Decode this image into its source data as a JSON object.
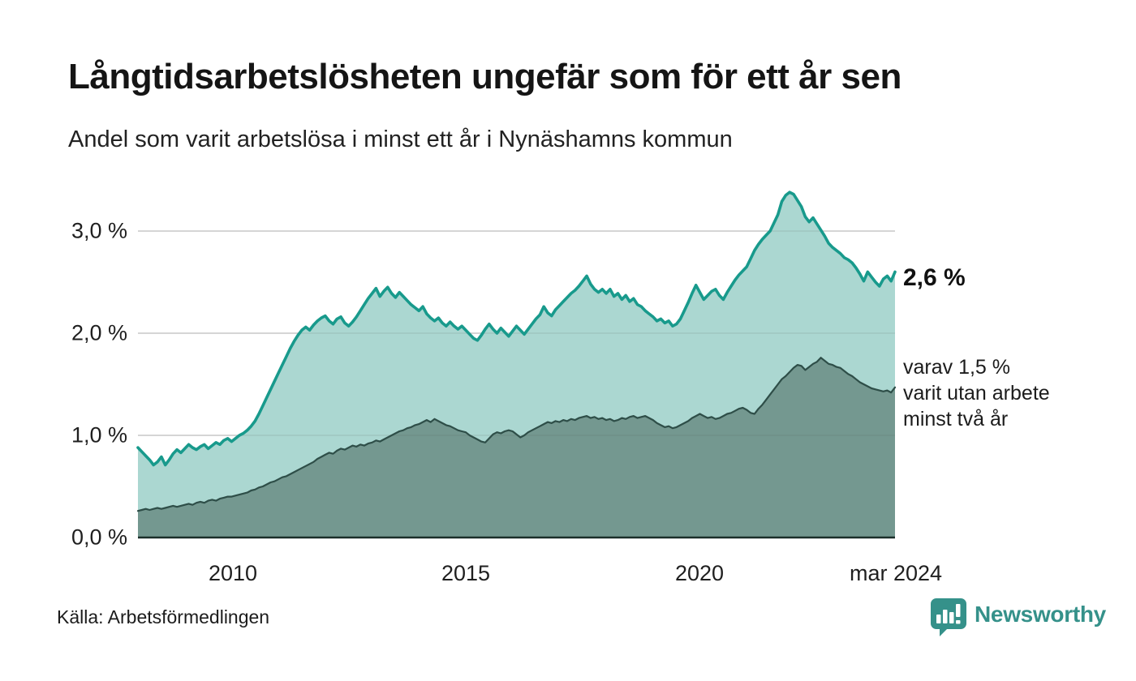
{
  "header": {
    "title": "Långtidsarbetslösheten ungefär som för ett år sen",
    "subtitle": "Andel som varit arbetslösa i minst ett år i Nynäshamns kommun"
  },
  "annotations": {
    "latest_total_label": "2,6 %",
    "note_lines": [
      "varav 1,5 %",
      "varit utan arbete",
      "minst två år"
    ]
  },
  "footer": {
    "source": "Källa: Arbetsförmedlingen",
    "brand_name": "Newsworthy",
    "brand_icon": "bar-chart-speech-bubble-icon"
  },
  "colors": {
    "line_total": "#189a8c",
    "fill_total": "#a5d4cd",
    "line_two_years": "#2e4e48",
    "fill_two_years": "#72968d",
    "gridline": "#d8d8d8",
    "axis_baseline": "#1b2f2a",
    "brand_teal": "#35918a",
    "text": "#1a1a1a"
  },
  "chart_data": {
    "type": "area",
    "title": "Långtidsarbetslösheten ungefär som för ett år sen",
    "subtitle": "Andel som varit arbetslösa i minst ett år i Nynäshamns kommun",
    "unit": "%",
    "x_start": "2008-01",
    "x_end": "2024-03",
    "x_resolution": "monthly",
    "ylim": [
      0,
      3.5
    ],
    "grid": "horizontal",
    "y_ticks": [
      {
        "label": "0,0 %",
        "value": 0
      },
      {
        "label": "1,0 %",
        "value": 1
      },
      {
        "label": "2,0 %",
        "value": 2
      },
      {
        "label": "3,0 %",
        "value": 3
      }
    ],
    "x_ticks": [
      {
        "label": "2010",
        "index": 24
      },
      {
        "label": "2015",
        "index": 84
      },
      {
        "label": "2020",
        "index": 144
      },
      {
        "label": "mar 2024",
        "index": 194
      }
    ],
    "series": [
      {
        "name": "Arbetslösa minst ett år",
        "latest_value": 2.6,
        "values": [
          0.88,
          0.84,
          0.8,
          0.76,
          0.71,
          0.74,
          0.79,
          0.71,
          0.76,
          0.82,
          0.86,
          0.83,
          0.87,
          0.91,
          0.88,
          0.86,
          0.89,
          0.91,
          0.87,
          0.9,
          0.93,
          0.91,
          0.95,
          0.97,
          0.94,
          0.97,
          1.0,
          1.02,
          1.05,
          1.09,
          1.14,
          1.21,
          1.29,
          1.37,
          1.45,
          1.53,
          1.61,
          1.69,
          1.77,
          1.85,
          1.92,
          1.98,
          2.03,
          2.06,
          2.03,
          2.08,
          2.12,
          2.15,
          2.17,
          2.12,
          2.09,
          2.14,
          2.16,
          2.1,
          2.07,
          2.11,
          2.16,
          2.22,
          2.28,
          2.34,
          2.39,
          2.44,
          2.36,
          2.41,
          2.45,
          2.39,
          2.35,
          2.4,
          2.36,
          2.32,
          2.28,
          2.25,
          2.22,
          2.26,
          2.19,
          2.15,
          2.12,
          2.15,
          2.1,
          2.07,
          2.11,
          2.07,
          2.04,
          2.07,
          2.03,
          1.99,
          1.95,
          1.93,
          1.98,
          2.04,
          2.09,
          2.04,
          2.0,
          2.05,
          2.01,
          1.97,
          2.02,
          2.07,
          2.03,
          1.99,
          2.04,
          2.09,
          2.14,
          2.18,
          2.26,
          2.2,
          2.17,
          2.23,
          2.27,
          2.31,
          2.35,
          2.39,
          2.42,
          2.46,
          2.51,
          2.56,
          2.48,
          2.43,
          2.4,
          2.43,
          2.39,
          2.43,
          2.36,
          2.39,
          2.33,
          2.37,
          2.31,
          2.34,
          2.28,
          2.26,
          2.22,
          2.19,
          2.16,
          2.12,
          2.14,
          2.1,
          2.12,
          2.07,
          2.09,
          2.14,
          2.22,
          2.3,
          2.39,
          2.47,
          2.4,
          2.33,
          2.37,
          2.41,
          2.43,
          2.37,
          2.33,
          2.4,
          2.46,
          2.52,
          2.57,
          2.61,
          2.65,
          2.73,
          2.81,
          2.87,
          2.92,
          2.96,
          3.0,
          3.08,
          3.16,
          3.29,
          3.35,
          3.38,
          3.36,
          3.3,
          3.24,
          3.14,
          3.09,
          3.13,
          3.07,
          3.01,
          2.95,
          2.88,
          2.84,
          2.81,
          2.78,
          2.74,
          2.72,
          2.69,
          2.64,
          2.58,
          2.51,
          2.6,
          2.55,
          2.5,
          2.46,
          2.53,
          2.56,
          2.51,
          2.6
        ]
      },
      {
        "name": "varav utan arbete minst två år",
        "latest_value": 1.5,
        "values": [
          0.26,
          0.27,
          0.28,
          0.27,
          0.28,
          0.29,
          0.28,
          0.29,
          0.3,
          0.31,
          0.3,
          0.31,
          0.32,
          0.33,
          0.32,
          0.34,
          0.35,
          0.34,
          0.36,
          0.37,
          0.36,
          0.38,
          0.39,
          0.4,
          0.4,
          0.41,
          0.42,
          0.43,
          0.44,
          0.46,
          0.47,
          0.49,
          0.5,
          0.52,
          0.54,
          0.55,
          0.57,
          0.59,
          0.6,
          0.62,
          0.64,
          0.66,
          0.68,
          0.7,
          0.72,
          0.74,
          0.77,
          0.79,
          0.81,
          0.83,
          0.82,
          0.85,
          0.87,
          0.86,
          0.88,
          0.9,
          0.89,
          0.91,
          0.9,
          0.92,
          0.93,
          0.95,
          0.94,
          0.96,
          0.98,
          1.0,
          1.02,
          1.04,
          1.05,
          1.07,
          1.08,
          1.1,
          1.11,
          1.13,
          1.15,
          1.13,
          1.16,
          1.14,
          1.12,
          1.1,
          1.09,
          1.07,
          1.05,
          1.04,
          1.03,
          1.0,
          0.98,
          0.96,
          0.94,
          0.93,
          0.97,
          1.01,
          1.03,
          1.02,
          1.04,
          1.05,
          1.04,
          1.01,
          0.98,
          1.0,
          1.03,
          1.05,
          1.07,
          1.09,
          1.11,
          1.13,
          1.12,
          1.14,
          1.13,
          1.15,
          1.14,
          1.16,
          1.15,
          1.17,
          1.18,
          1.19,
          1.17,
          1.18,
          1.16,
          1.17,
          1.15,
          1.16,
          1.14,
          1.15,
          1.17,
          1.16,
          1.18,
          1.19,
          1.17,
          1.18,
          1.19,
          1.17,
          1.15,
          1.12,
          1.1,
          1.08,
          1.09,
          1.07,
          1.08,
          1.1,
          1.12,
          1.14,
          1.17,
          1.19,
          1.21,
          1.19,
          1.17,
          1.18,
          1.16,
          1.17,
          1.19,
          1.21,
          1.22,
          1.24,
          1.26,
          1.27,
          1.25,
          1.22,
          1.21,
          1.26,
          1.3,
          1.35,
          1.4,
          1.45,
          1.5,
          1.55,
          1.58,
          1.62,
          1.66,
          1.69,
          1.68,
          1.64,
          1.67,
          1.7,
          1.72,
          1.76,
          1.73,
          1.7,
          1.69,
          1.67,
          1.66,
          1.63,
          1.6,
          1.58,
          1.55,
          1.52,
          1.5,
          1.48,
          1.46,
          1.45,
          1.44,
          1.43,
          1.44,
          1.42,
          1.47
        ]
      }
    ],
    "legend_position": "none"
  }
}
